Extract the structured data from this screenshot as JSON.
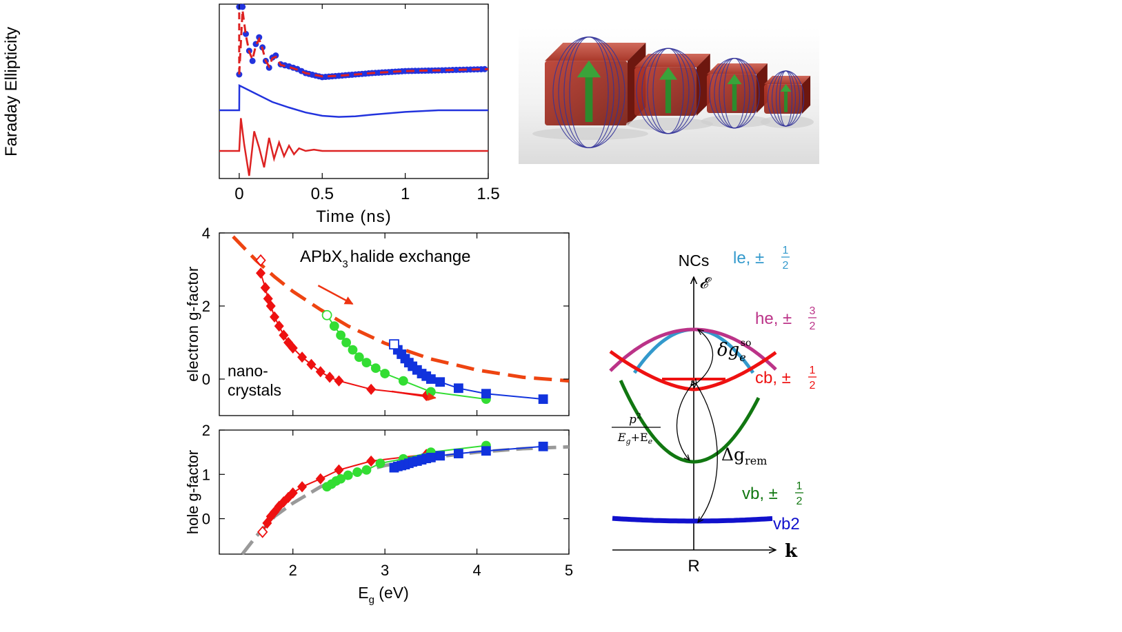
{
  "chart_data": [
    {
      "id": "faraday",
      "type": "line",
      "ylabel": "Faraday Ellipticity",
      "xlabel": "Time (ns)",
      "xlim": [
        -0.12,
        1.5
      ],
      "x_ticks": [
        0,
        0.5,
        1,
        1.5
      ],
      "x_tick_labels": [
        "0",
        "0.5",
        "1",
        "1.5"
      ],
      "y_tick_labels": "none",
      "series": [
        {
          "role": "measured data",
          "color": "#2233dd",
          "style": "dots",
          "offset": 0,
          "x": [
            0.0,
            0.02,
            0.04,
            0.06,
            0.08,
            0.1,
            0.12,
            0.14,
            0.16,
            0.18,
            0.2,
            0.22,
            0.25,
            0.3,
            0.35,
            0.4,
            0.5,
            0.6,
            0.8,
            1.0,
            1.2,
            1.5
          ],
          "y": [
            0.0,
            1.0,
            0.6,
            0.35,
            0.2,
            0.45,
            0.55,
            0.4,
            0.2,
            0.1,
            0.25,
            0.28,
            0.15,
            0.12,
            0.08,
            0.02,
            -0.04,
            -0.02,
            0.02,
            0.05,
            0.06,
            0.08
          ]
        },
        {
          "role": "fit",
          "color": "#dd2222",
          "style": "dashed",
          "offset": 0,
          "x": [
            0.0,
            0.02,
            0.04,
            0.06,
            0.08,
            0.1,
            0.12,
            0.14,
            0.16,
            0.18,
            0.2,
            0.22,
            0.25,
            0.3,
            0.35,
            0.4,
            0.5,
            0.6,
            0.8,
            1.0,
            1.2,
            1.5
          ],
          "y": [
            0.0,
            0.95,
            0.58,
            0.34,
            0.22,
            0.43,
            0.52,
            0.38,
            0.2,
            0.12,
            0.24,
            0.26,
            0.14,
            0.11,
            0.07,
            0.02,
            -0.03,
            -0.02,
            0.02,
            0.05,
            0.06,
            0.08
          ]
        },
        {
          "role": "slow component",
          "color": "#2233dd",
          "style": "solid",
          "offset": -0.6,
          "x": [
            -0.12,
            0.0,
            0.001,
            0.1,
            0.2,
            0.3,
            0.4,
            0.5,
            0.6,
            0.7,
            0.8,
            1.0,
            1.2,
            1.5
          ],
          "y": [
            0.0,
            0.0,
            0.45,
            0.3,
            0.15,
            0.05,
            -0.04,
            -0.1,
            -0.12,
            -0.11,
            -0.08,
            -0.03,
            0.0,
            0.0
          ]
        },
        {
          "role": "oscillating component",
          "color": "#dd2222",
          "style": "solid",
          "offset": -1.2,
          "x": [
            -0.12,
            0.0,
            0.01,
            0.03,
            0.06,
            0.09,
            0.12,
            0.15,
            0.18,
            0.21,
            0.24,
            0.27,
            0.3,
            0.33,
            0.36,
            0.4,
            0.45,
            0.5,
            0.6,
            0.8,
            1.5
          ],
          "y": [
            0.0,
            0.0,
            0.5,
            0.1,
            -0.38,
            0.3,
            0.05,
            -0.25,
            0.2,
            -0.12,
            0.13,
            -0.08,
            0.08,
            -0.05,
            0.04,
            0.0,
            0.02,
            0.0,
            0.0,
            0.0,
            0.0
          ]
        }
      ]
    },
    {
      "id": "electron-g",
      "type": "scatter",
      "ylabel": "electron g-factor",
      "xlim": [
        1.2,
        5.0
      ],
      "ylim": [
        -1.0,
        4.0
      ],
      "y_ticks": [
        0,
        2,
        4
      ],
      "y_tick_labels": [
        "0",
        "2",
        "4"
      ],
      "annotations": {
        "title_main": "APbX",
        "title_sub": "3",
        "title_rest": "halide exchange",
        "nc_line1": "nano-",
        "nc_line2": "crystals"
      },
      "series": [
        {
          "role": "APbX3 halide exchange",
          "color": "#ee4411",
          "style": "dashed",
          "marker": "none",
          "x": [
            1.35,
            1.6,
            1.8,
            2.0,
            2.3,
            2.6,
            3.0,
            3.5,
            4.0,
            4.5,
            5.0
          ],
          "y": [
            3.9,
            3.25,
            2.8,
            2.4,
            1.9,
            1.45,
            0.98,
            0.55,
            0.25,
            0.05,
            -0.05
          ]
        },
        {
          "role": "red nanocrystals",
          "color": "#ee1111",
          "marker": "diamond",
          "x": [
            1.65,
            1.7,
            1.73,
            1.76,
            1.8,
            1.85,
            1.9,
            1.95,
            2.0,
            2.1,
            2.2,
            2.3,
            2.4,
            2.5,
            2.85,
            3.45
          ],
          "y": [
            2.9,
            2.5,
            2.2,
            2.0,
            1.7,
            1.45,
            1.2,
            1.0,
            0.85,
            0.6,
            0.4,
            0.2,
            0.05,
            -0.05,
            -0.28,
            -0.45
          ]
        },
        {
          "role": "green nanocrystals",
          "color": "#33dd33",
          "marker": "circle",
          "x": [
            2.37,
            2.45,
            2.52,
            2.58,
            2.65,
            2.72,
            2.8,
            2.9,
            3.0,
            3.2,
            3.5,
            4.1
          ],
          "y": [
            1.75,
            1.45,
            1.2,
            1.0,
            0.8,
            0.6,
            0.45,
            0.3,
            0.15,
            -0.05,
            -0.35,
            -0.55
          ]
        },
        {
          "role": "blue nanocrystals",
          "color": "#1133dd",
          "marker": "square",
          "x": [
            3.1,
            3.14,
            3.18,
            3.22,
            3.26,
            3.3,
            3.35,
            3.4,
            3.45,
            3.5,
            3.6,
            3.8,
            4.1,
            4.72
          ],
          "y": [
            0.95,
            0.8,
            0.68,
            0.56,
            0.45,
            0.35,
            0.25,
            0.15,
            0.08,
            0.0,
            -0.08,
            -0.25,
            -0.4,
            -0.55
          ]
        }
      ],
      "open_markers": [
        {
          "x": 1.65,
          "y": 3.25,
          "shape": "diamond",
          "color": "#ee1111"
        },
        {
          "x": 2.37,
          "y": 1.75,
          "shape": "circle",
          "color": "#33dd33"
        },
        {
          "x": 3.1,
          "y": 0.95,
          "shape": "square",
          "color": "#1133dd"
        }
      ],
      "arrows": [
        {
          "from": [
            1.6,
            2.75
          ],
          "to": [
            1.9,
            2.15
          ],
          "color": "#ee3311"
        },
        {
          "from": [
            2.4,
            -0.15
          ],
          "to": [
            2.8,
            -0.42
          ],
          "color": "#ee1111"
        }
      ]
    },
    {
      "id": "hole-g",
      "type": "scatter",
      "ylabel": "hole g-factor",
      "xlabel": "E_g (eV)",
      "xlabel_main": "E",
      "xlabel_sub": "g",
      "xlabel_rest": " (eV)",
      "xlim": [
        1.2,
        5.0
      ],
      "ylim": [
        -0.8,
        2.0
      ],
      "x_ticks": [
        2,
        3,
        4,
        5
      ],
      "x_tick_labels": [
        "2",
        "3",
        "4",
        "5"
      ],
      "y_ticks": [
        0,
        1,
        2
      ],
      "y_tick_labels": [
        "0",
        "1",
        "2"
      ],
      "series": [
        {
          "role": "fit",
          "color": "#999999",
          "style": "dashed",
          "marker": "none",
          "x": [
            1.45,
            1.6,
            1.8,
            2.0,
            2.3,
            2.6,
            3.0,
            3.5,
            4.0,
            4.5,
            5.0
          ],
          "y": [
            -0.8,
            -0.4,
            0.05,
            0.35,
            0.72,
            0.98,
            1.2,
            1.38,
            1.5,
            1.58,
            1.62
          ]
        },
        {
          "role": "red nanocrystals",
          "color": "#ee1111",
          "marker": "diamond",
          "x": [
            1.67,
            1.72,
            1.76,
            1.8,
            1.85,
            1.9,
            1.95,
            2.0,
            2.1,
            2.3,
            2.5,
            2.85,
            3.45
          ],
          "y": [
            -0.3,
            -0.1,
            0.05,
            0.15,
            0.28,
            0.38,
            0.48,
            0.58,
            0.72,
            0.9,
            1.1,
            1.3,
            1.45
          ]
        },
        {
          "role": "green nanocrystals",
          "color": "#33dd33",
          "marker": "circle",
          "x": [
            2.37,
            2.42,
            2.47,
            2.52,
            2.6,
            2.7,
            2.8,
            2.95,
            3.2,
            3.5,
            4.1
          ],
          "y": [
            0.72,
            0.78,
            0.85,
            0.9,
            0.98,
            1.05,
            1.1,
            1.25,
            1.35,
            1.5,
            1.65
          ]
        },
        {
          "role": "blue nanocrystals",
          "color": "#1133dd",
          "marker": "square",
          "x": [
            3.1,
            3.14,
            3.18,
            3.22,
            3.26,
            3.3,
            3.35,
            3.4,
            3.45,
            3.5,
            3.6,
            3.8,
            4.1,
            4.72
          ],
          "y": [
            1.15,
            1.18,
            1.2,
            1.22,
            1.25,
            1.28,
            1.3,
            1.33,
            1.36,
            1.38,
            1.42,
            1.47,
            1.53,
            1.63
          ]
        }
      ],
      "open_markers": [
        {
          "x": 1.67,
          "y": -0.3,
          "shape": "diamond",
          "color": "#ee1111"
        }
      ]
    },
    {
      "id": "band-diagram",
      "type": "diagram",
      "labels": {
        "ncs": "NCs",
        "energy_axis": "𝓔",
        "k_axis": "k",
        "r_point": "R",
        "le": "le, ±",
        "he": "he, ±",
        "cb": "cb, ±",
        "vb": "vb, ±",
        "vb2": "vb2",
        "frac_half_num": "1",
        "frac_half_den": "2",
        "frac_three_num": "3",
        "frac_three_den": "2",
        "delta_g_so_main": "δg",
        "delta_g_so_sub": "e",
        "delta_g_so_sup": "so",
        "delta_g_rem_main": "Δg",
        "delta_g_rem_sub": "rem",
        "p2_num": "p",
        "p2_sup": "2",
        "p2_den": "E",
        "p2_den_sub1": "g",
        "p2_den_plus": "+E",
        "p2_den_sub2": "e"
      },
      "colors": {
        "le": "#3399cc",
        "he": "#bb3388",
        "cb": "#ee1111",
        "vb": "#117711",
        "vb2": "#1111cc"
      }
    }
  ],
  "illustration": {
    "description_free": true,
    "cube_count": 4,
    "cube_color": "#9b2a1f",
    "arrow_color": "#2d8a2d",
    "field_line_color": "#333399"
  }
}
